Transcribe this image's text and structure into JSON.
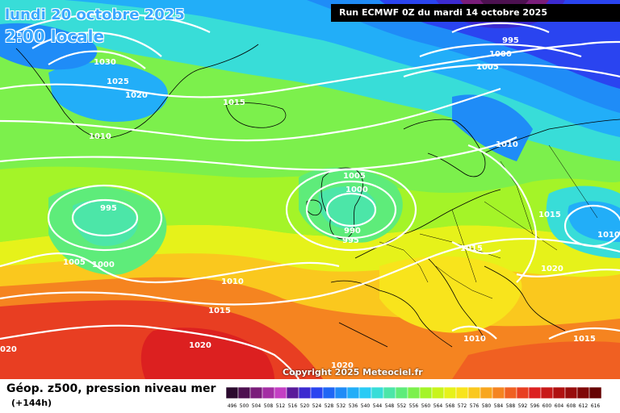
{
  "header": {
    "date": "lundi 20 octobre 2025",
    "time": "2:00 locale",
    "run": "Run ECMWF 0Z du mardi 14 octobre 2025"
  },
  "copyright": "Copyright 2025 Meteociel.fr",
  "footer": {
    "title": "Géop. z500, pression niveau mer",
    "lead_time": "(+144h)"
  },
  "scale": {
    "labels": [
      "496",
      "500",
      "504",
      "508",
      "512",
      "516",
      "520",
      "524",
      "528",
      "532",
      "536",
      "540",
      "544",
      "548",
      "552",
      "556",
      "560",
      "564",
      "568",
      "572",
      "576",
      "580",
      "584",
      "588",
      "592",
      "596",
      "600",
      "604",
      "608",
      "612",
      "616"
    ],
    "colors": [
      "#2b0a2e",
      "#4d1150",
      "#7a1d7a",
      "#a42ea4",
      "#c43fc4",
      "#5a1a9a",
      "#3c2ad0",
      "#2a44f0",
      "#1f66f5",
      "#1f8cf7",
      "#22aef8",
      "#2acbf5",
      "#38ddd8",
      "#4ce6a8",
      "#5eec7a",
      "#7cf04c",
      "#a4f428",
      "#c8f41c",
      "#e6f21a",
      "#f8e41c",
      "#fac81e",
      "#f8a61e",
      "#f58420",
      "#f06022",
      "#e83e22",
      "#dc2020",
      "#c81818",
      "#b01010",
      "#980c0c",
      "#800808",
      "#660404"
    ]
  },
  "isobar_labels": [
    {
      "text": "1030",
      "cls": "label-1030-greenland"
    },
    {
      "text": "1025",
      "cls": "label-1025-greenland"
    },
    {
      "text": "1020",
      "cls": "label-1020-greenland"
    },
    {
      "text": "1010",
      "cls": "label-1010-greenland"
    },
    {
      "text": "1015",
      "cls": "label-1015-iceland"
    },
    {
      "text": "995",
      "cls": "label-995-atlantic"
    },
    {
      "text": "1005",
      "cls": "label-1005-atlantic"
    },
    {
      "text": "1000",
      "cls": "label-1000-atlantic"
    },
    {
      "text": "1010",
      "cls": "label-1010-midatlantic"
    },
    {
      "text": "1015",
      "cls": "label-1015-midatlantic"
    },
    {
      "text": "1020",
      "cls": "label-1020-azores"
    },
    {
      "text": "1020",
      "cls": "label-1020-bottom"
    },
    {
      "text": "1005",
      "cls": "label-1005-uk"
    },
    {
      "text": "1000",
      "cls": "label-1000-uk"
    },
    {
      "text": "990",
      "cls": "label-990-uk"
    },
    {
      "text": "995",
      "cls": "label-995-uk"
    },
    {
      "text": "995",
      "cls": "label-995-scandinavia"
    },
    {
      "text": "1000",
      "cls": "label-1000-scandinavia"
    },
    {
      "text": "1005",
      "cls": "label-1005-scandinavia"
    },
    {
      "text": "1010",
      "cls": "label-1010-baltic"
    },
    {
      "text": "1015",
      "cls": "label-1015-russia"
    },
    {
      "text": "1010",
      "cls": "label-1010-east"
    },
    {
      "text": "1015",
      "cls": "label-1015-alps"
    },
    {
      "text": "1020",
      "cls": "label-1020-balkans"
    },
    {
      "text": "1010",
      "cls": "label-1010-italy"
    },
    {
      "text": "1015",
      "cls": "label-1015-greece"
    },
    {
      "text": "020",
      "cls": "label-020-left"
    }
  ]
}
